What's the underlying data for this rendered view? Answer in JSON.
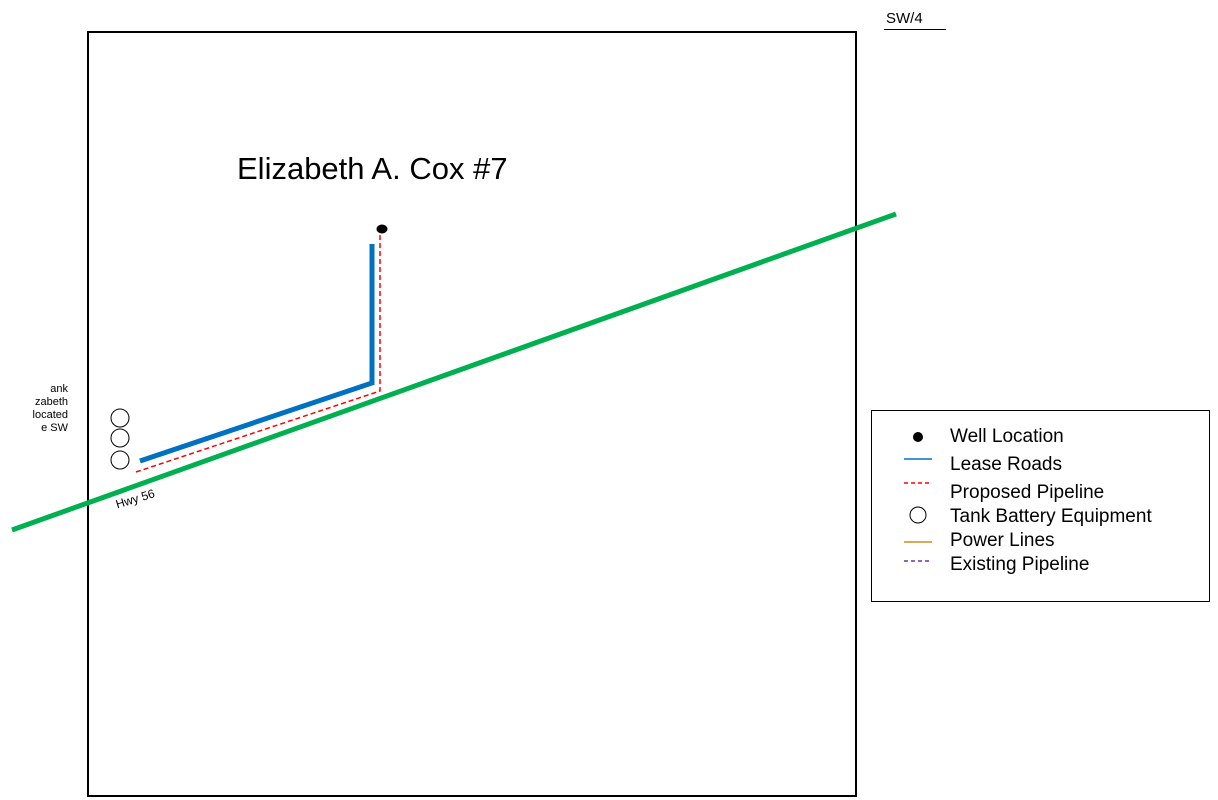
{
  "section": {
    "label": "SW/4"
  },
  "well": {
    "name": "Elizabeth A. Cox #7"
  },
  "road": {
    "label": "Hwy 56"
  },
  "tank_note": {
    "lines": [
      "ank",
      "zabeth",
      "located",
      "e SW"
    ]
  },
  "legend": {
    "items": [
      {
        "label": "Well Location",
        "icon": "filled-dot-icon"
      },
      {
        "label": "Lease Roads",
        "icon": "blue-line-icon"
      },
      {
        "label": "Proposed Pipeline",
        "icon": "red-dashed-line-icon"
      },
      {
        "label": "Tank Battery Equipment",
        "icon": "open-circle-icon"
      },
      {
        "label": "Power Lines",
        "icon": "orange-line-icon"
      },
      {
        "label": "Existing Pipeline",
        "icon": "purple-dashed-line-icon"
      }
    ]
  },
  "colors": {
    "highway": "#00b050",
    "lease_road": "#0070c0",
    "proposed_pipeline": "#ff0000",
    "power_lines": "#c8901a",
    "existing_pipeline": "#7030a0"
  }
}
